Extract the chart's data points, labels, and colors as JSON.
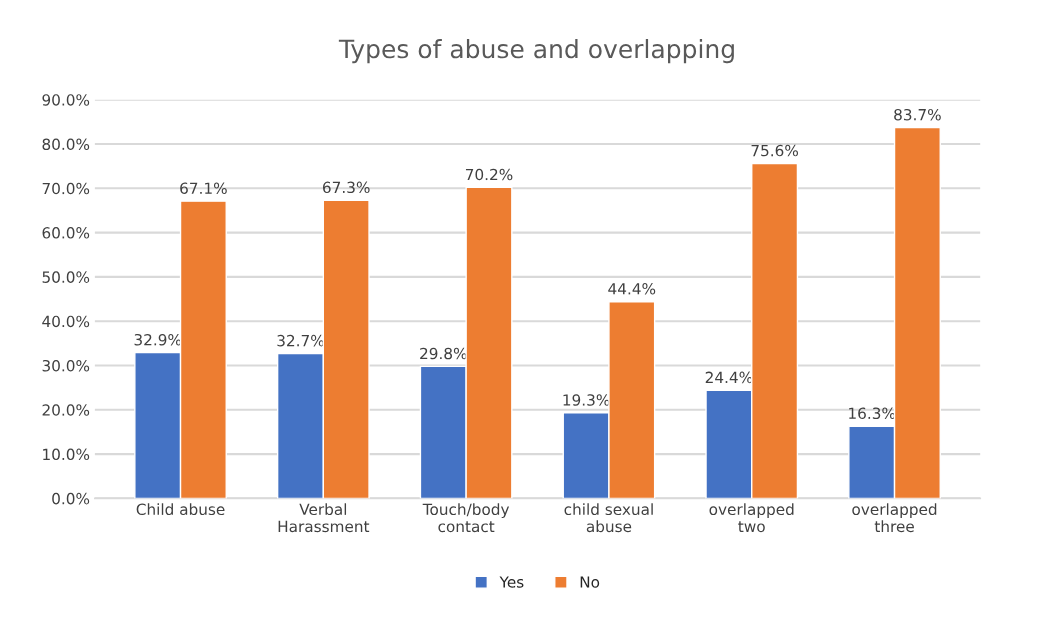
{
  "chart_data": {
    "type": "bar",
    "title": "Types of abuse and overlapping",
    "categories": [
      "Child abuse",
      "Verbal\nHarassment",
      "Touch/body\ncontact",
      "child sexual\nabuse",
      "overlapped\ntwo",
      "overlapped\nthree"
    ],
    "series": [
      {
        "name": "Yes",
        "color": "#4472c4",
        "values": [
          32.9,
          32.7,
          29.8,
          19.3,
          24.4,
          16.3
        ],
        "value_labels": [
          "32.9%",
          "32.7%",
          "29.8%",
          "19.3%",
          "24.4%",
          "16.3%"
        ]
      },
      {
        "name": "No",
        "color": "#ed7d31",
        "values": [
          67.1,
          67.3,
          70.2,
          44.4,
          75.6,
          83.7
        ],
        "value_labels": [
          "67.1%",
          "67.3%",
          "70.2%",
          "44.4%",
          "75.6%",
          "83.7%"
        ]
      }
    ],
    "ylim": [
      0,
      90
    ],
    "yticks": [
      {
        "value": 0,
        "label": "0.0%"
      },
      {
        "value": 10,
        "label": "10.0%"
      },
      {
        "value": 20,
        "label": "20.0%"
      },
      {
        "value": 30,
        "label": "30.0%"
      },
      {
        "value": 40,
        "label": "40.0%"
      },
      {
        "value": 50,
        "label": "50.0%"
      },
      {
        "value": 60,
        "label": "60.0%"
      },
      {
        "value": 70,
        "label": "70.0%"
      },
      {
        "value": 80,
        "label": "80.0%"
      },
      {
        "value": 90,
        "label": "90.0%"
      }
    ],
    "grid": "y",
    "legend": "bottom"
  }
}
